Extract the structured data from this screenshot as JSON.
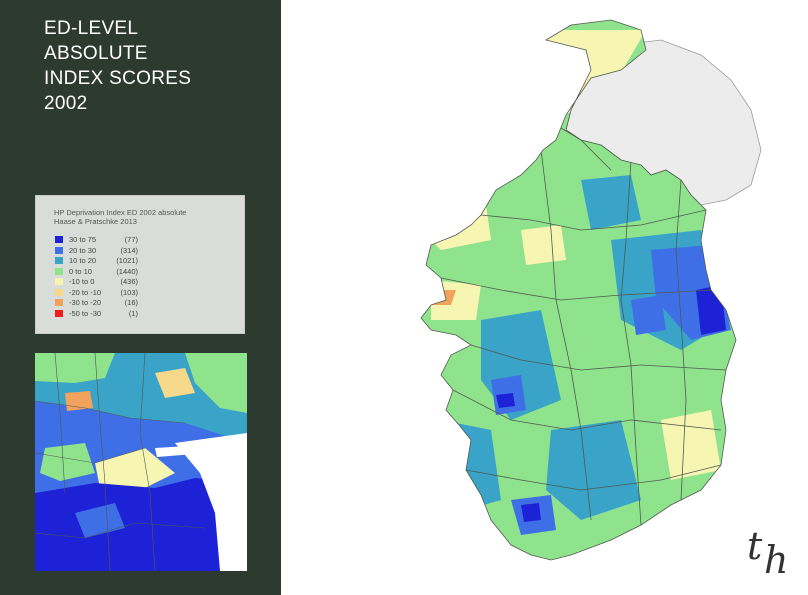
{
  "title_lines": [
    "ED-LEVEL",
    "ABSOLUTE",
    "INDEX SCORES",
    "2002"
  ],
  "legend": {
    "title_lines": [
      "HP Deprivation Index ED 2002 absolute",
      "Haase & Pratschke 2013"
    ],
    "items": [
      {
        "range": "30 to 75",
        "count": "(77)",
        "color": "#1e22d6"
      },
      {
        "range": "20 to 30",
        "count": "(314)",
        "color": "#3f6fe6"
      },
      {
        "range": "10 to 20",
        "count": "(1021)",
        "color": "#3aa3c8"
      },
      {
        "range": "0 to 10",
        "count": "(1440)",
        "color": "#8fe38c"
      },
      {
        "range": "-10 to 0",
        "count": "(436)",
        "color": "#f6f6b2"
      },
      {
        "range": "-20 to -10",
        "count": "(103)",
        "color": "#f6d98a"
      },
      {
        "range": "-30 to -20",
        "count": "(16)",
        "color": "#f1a25c"
      },
      {
        "range": "-50 to -30",
        "count": "(1)",
        "color": "#ee1d1d"
      }
    ]
  },
  "colors": {
    "sidebar_bg": "#2d3a2f",
    "northern_ireland": "#ececec",
    "sea": "#ffffff",
    "boundary": "#505a50"
  },
  "logo": {
    "t": "t",
    "h": "h"
  }
}
